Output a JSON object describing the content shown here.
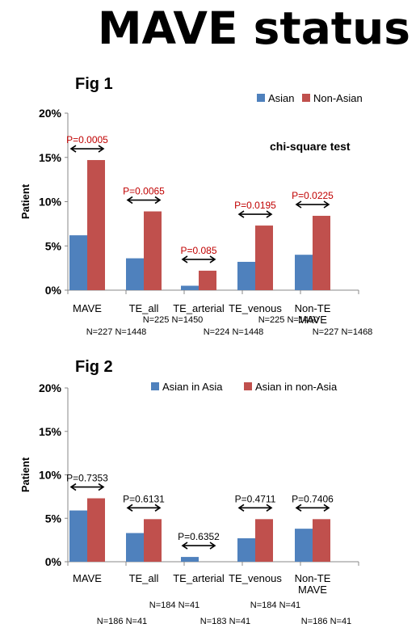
{
  "page_title": "MAVE status",
  "colors": {
    "asian": "#4F81BD",
    "nonasian": "#C0504D",
    "pvalue_fig1": "#C00000",
    "pvalue_fig2": "#000000"
  },
  "chart_data": [
    {
      "type": "bar",
      "fig_label": "Fig  1",
      "ylabel": "Patient",
      "ylim": [
        0,
        20
      ],
      "y_ticks": [
        "0%",
        "5%",
        "10%",
        "15%",
        "20%"
      ],
      "annotation": "chi-square test",
      "categories": [
        "MAVE",
        "TE_all",
        "TE_arterial",
        "TE_venous",
        "Non-TE MAVE"
      ],
      "category_lines": [
        [
          "MAVE"
        ],
        [
          "TE_all"
        ],
        [
          "TE_arterial"
        ],
        [
          "TE_venous"
        ],
        [
          "Non-TE",
          "MAVE"
        ]
      ],
      "series": [
        {
          "name": "Asian",
          "values": [
            6.2,
            3.6,
            0.5,
            3.2,
            4.0
          ]
        },
        {
          "name": "Non-Asian",
          "values": [
            14.7,
            8.9,
            2.2,
            7.3,
            8.4
          ]
        }
      ],
      "p_values": [
        "P=0.0005",
        "P=0.0065",
        "P=0.085",
        "P=0.0195",
        "P=0.0225"
      ],
      "n_labels": [
        "N=227 N=1448",
        "N=225 N=1450",
        "N=224 N=1448",
        "N=225 N=1450",
        "N=227 N=1468"
      ],
      "legend_position": "top-right"
    },
    {
      "type": "bar",
      "fig_label": "Fig  2",
      "ylabel": "Patient",
      "ylim": [
        0,
        20
      ],
      "y_ticks": [
        "0%",
        "5%",
        "10%",
        "15%",
        "20%"
      ],
      "categories": [
        "MAVE",
        "TE_all",
        "TE_arterial",
        "TE_venous",
        "Non-TE MAVE"
      ],
      "category_lines": [
        [
          "MAVE"
        ],
        [
          "TE_all"
        ],
        [
          "TE_arterial"
        ],
        [
          "TE_venous"
        ],
        [
          "Non-TE",
          "MAVE"
        ]
      ],
      "series": [
        {
          "name": "Asian in Asia",
          "values": [
            5.9,
            3.3,
            0.55,
            2.7,
            3.8
          ]
        },
        {
          "name": "Asian in non-Asia",
          "values": [
            7.3,
            4.9,
            0,
            4.9,
            4.9
          ]
        }
      ],
      "p_values": [
        "P=0.7353",
        "P=0.6131",
        "P=0.6352",
        "P=0.4711",
        "P=0.7406"
      ],
      "n_labels": [
        "N=186 N=41",
        "N=184 N=41",
        "N=183 N=41",
        "N=184 N=41",
        "N=186 N=41"
      ],
      "legend_position": "top"
    }
  ]
}
